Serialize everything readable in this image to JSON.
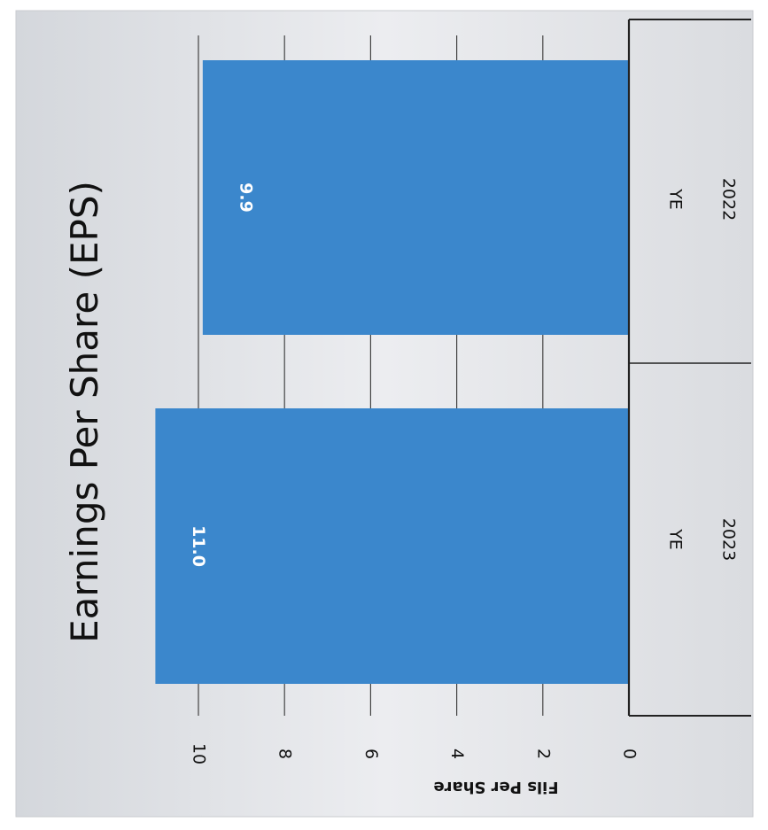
{
  "chart_data": {
    "type": "bar",
    "orientation": "vertical",
    "title": "Earnings Per Share (EPS)",
    "ylabel": "Fils Per Share",
    "xlabel": "",
    "category_groups": [
      {
        "label": "YE",
        "sub": "2023"
      },
      {
        "label": "YE",
        "sub": "2022"
      }
    ],
    "categories": [
      "YE 2023",
      "YE 2022"
    ],
    "values": [
      11.0,
      9.9
    ],
    "data_labels": [
      "11.0",
      "9.9"
    ],
    "y_ticks": [
      "0",
      "2",
      "4",
      "6",
      "8",
      "10"
    ],
    "ylim": [
      0,
      11.0
    ],
    "grid": true,
    "image_rotation": "rotated 90 degrees clockwise",
    "colors": {
      "bar": "#3B87CC",
      "grid": "#444444",
      "axis": "#222222",
      "background": "#E7E9EC",
      "data_label": "#FFFFFF",
      "text": "#111111"
    }
  }
}
